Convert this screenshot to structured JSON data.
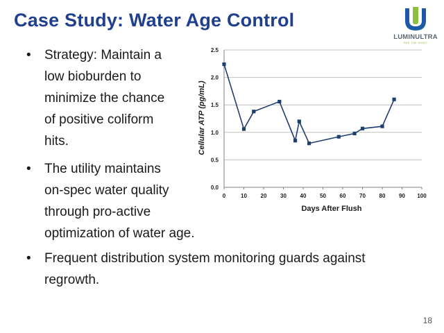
{
  "slide": {
    "title": "Case Study: Water Age Control",
    "page_number": "18"
  },
  "logo": {
    "name": "LUMINULTRA",
    "tagline": "SEE THE SIGHT"
  },
  "bullets": [
    {
      "marker": "•",
      "lines": [
        "Strategy: Maintain a",
        "low bioburden to",
        "minimize the chance",
        "of positive coliform",
        "hits."
      ]
    },
    {
      "marker": "•",
      "lines": [
        "The utility maintains",
        "on-spec water quality",
        "through pro-active",
        "optimization of water age."
      ]
    },
    {
      "marker": "•",
      "lines": [
        "Frequent distribution system monitoring guards against",
        "regrowth."
      ]
    }
  ],
  "colors": {
    "title": "#1f3f8f",
    "series": "#1f3f6e",
    "grid": "#bfbfbf",
    "logo_blue": "#1b5aa6",
    "logo_green": "#8fbf3f"
  },
  "chart_data": {
    "type": "line",
    "title": "",
    "xlabel": "Days After Flush",
    "ylabel": "Cellular ATP (pg/mL)",
    "xlim": [
      0,
      100
    ],
    "ylim": [
      0,
      2.5
    ],
    "xticks": [
      "0",
      "10",
      "20",
      "30",
      "40",
      "50",
      "60",
      "70",
      "80",
      "90",
      "100"
    ],
    "yticks": [
      "0.0",
      "0.5",
      "1.0",
      "1.5",
      "2.0",
      "2.5"
    ],
    "grid": "horizontal",
    "legend": "none",
    "x": [
      0,
      10,
      15,
      28,
      36,
      38,
      43,
      58,
      66,
      70,
      80,
      86
    ],
    "y": [
      2.24,
      1.06,
      1.38,
      1.56,
      0.85,
      1.2,
      0.8,
      0.92,
      0.98,
      1.07,
      1.11,
      1.6
    ]
  }
}
